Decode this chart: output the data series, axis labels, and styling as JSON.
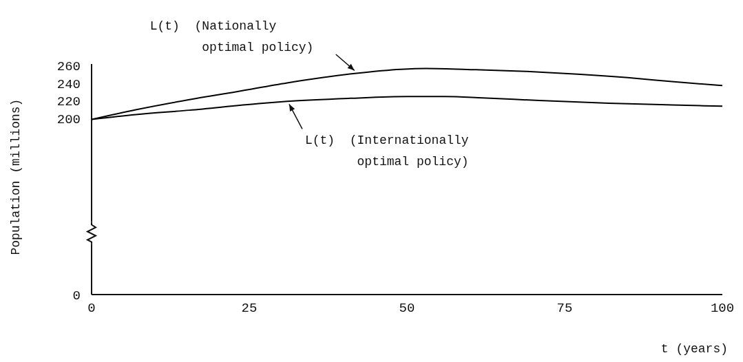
{
  "chart_data": {
    "type": "line",
    "xlabel": "t (years)",
    "ylabel": "Population (millions)",
    "xlim": [
      0,
      100
    ],
    "xticks": [
      0,
      25,
      50,
      75,
      100
    ],
    "ylim": [
      0,
      262
    ],
    "yticks": [
      0,
      200,
      220,
      240,
      260
    ],
    "marker": "none",
    "line_style": "solid",
    "series": [
      {
        "name": "L(t) (Nationally optimal policy)",
        "color": "#000000",
        "x": [
          0,
          7,
          15.5,
          23,
          31,
          42,
          49,
          53,
          61,
          69,
          77,
          85,
          92,
          100
        ],
        "values": [
          199,
          210,
          221.5,
          230.5,
          240.5,
          251.5,
          256,
          257,
          255.5,
          253.5,
          250.5,
          246.5,
          242,
          237.5
        ]
      },
      {
        "name": "L(t) (Internationally optimal policy)",
        "color": "#000000",
        "x": [
          0,
          7,
          15.5,
          26.5,
          31,
          41,
          50,
          56,
          62,
          71,
          82,
          92,
          100
        ],
        "values": [
          199,
          204.5,
          209.5,
          217,
          219.5,
          223,
          225,
          225,
          223.5,
          220.5,
          217.5,
          215.5,
          214
        ]
      }
    ]
  }
}
